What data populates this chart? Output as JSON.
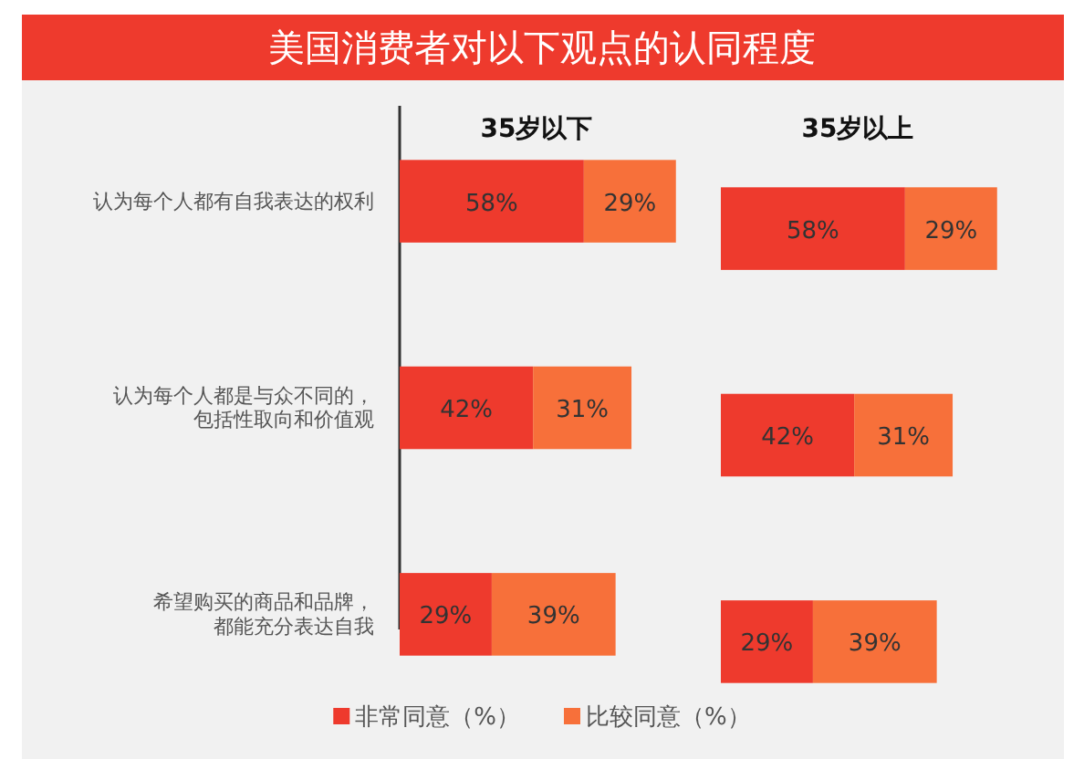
{
  "chart_data": [
    {
      "type": "bar",
      "orientation": "horizontal",
      "stacked": true,
      "title": "美国消费者对以下观点的认同程度",
      "subtitle": "35岁以下",
      "categories": [
        "认为每个人都有自我表达的权利",
        "认为每个人都是与众不同的，包括性取向和价值观",
        "希望购买的商品和品牌，都能充分表达自我"
      ],
      "legend": "bottom",
      "tick_labels": "y",
      "series": [
        {
          "name": "非常同意（%）",
          "color": "#ee3a2d",
          "values": [
            58,
            42,
            29
          ],
          "value_labels": [
            "58%",
            "42%",
            "29%"
          ]
        },
        {
          "name": "比较同意（%）",
          "color": "#f7703a",
          "values": [
            29,
            31,
            39
          ],
          "value_labels": [
            "29%",
            "31%",
            "39%"
          ]
        }
      ]
    },
    {
      "type": "bar",
      "orientation": "horizontal",
      "stacked": true,
      "subtitle": "35岁以上",
      "categories": [
        null,
        null,
        null
      ],
      "tick_labels": false,
      "series": [
        {
          "color": "#ee3a2d",
          "values": [
            58,
            42,
            29
          ],
          "value_labels": [
            "58%",
            "42%",
            "29%"
          ]
        },
        {
          "color": "#f7703a",
          "values": [
            29,
            31,
            39
          ],
          "value_labels": [
            "29%",
            "31%",
            "39%"
          ]
        }
      ]
    }
  ]
}
